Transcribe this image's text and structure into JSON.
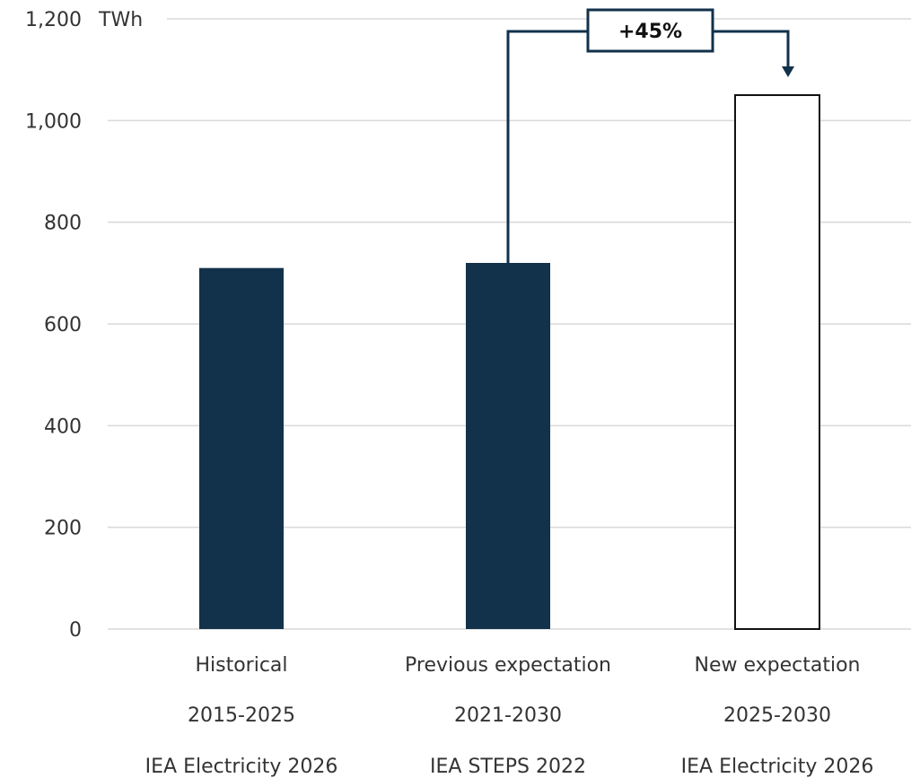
{
  "chart_data": {
    "type": "bar",
    "unit_label": "TWh",
    "ylim": [
      0,
      1200
    ],
    "yticks": [
      0,
      200,
      400,
      600,
      800,
      1000,
      1200
    ],
    "ytick_labels": [
      "0",
      "200",
      "400",
      "600",
      "800",
      "1,000",
      "1,200"
    ],
    "grid": true,
    "categories": [
      {
        "label": "Historical",
        "period": "2015-2025",
        "source": "IEA Electricity 2026"
      },
      {
        "label": "Previous expectation",
        "period": "2021-2030",
        "source": "IEA STEPS 2022"
      },
      {
        "label": "New expectation",
        "period": "2025-2030",
        "source": "IEA Electricity 2026"
      }
    ],
    "values": [
      710,
      720,
      1050
    ],
    "bar_styles": [
      "filled",
      "filled",
      "outline"
    ],
    "annotation": {
      "text": "+45%",
      "from_category": 1,
      "to_category": 2
    }
  },
  "colors": {
    "bar_fill": "#12314a",
    "outline": "#111111",
    "connector": "#12314a",
    "grid": "#d9d9d9"
  }
}
